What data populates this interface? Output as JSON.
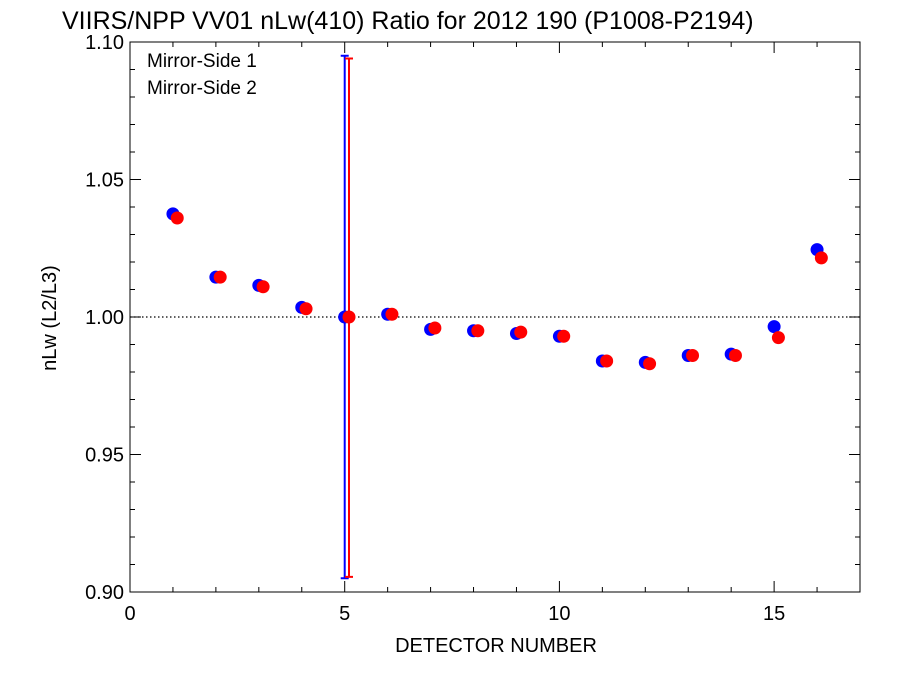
{
  "chart_data": {
    "type": "scatter",
    "title": "VIIRS/NPP VV01 nLw(410) Ratio for 2012 190 (P1008-P2194)",
    "xlabel": "DETECTOR NUMBER",
    "ylabel": "nLw (L2/L3)",
    "xlim": [
      0,
      17
    ],
    "ylim": [
      0.9,
      1.1
    ],
    "x_ticks": [
      0,
      5,
      10,
      15
    ],
    "x_tick_labels": [
      "0",
      "5",
      "10",
      "15"
    ],
    "y_ticks": [
      0.9,
      0.95,
      1.0,
      1.05,
      1.1
    ],
    "y_tick_labels": [
      "0.90",
      "0.95",
      "1.00",
      "1.05",
      "1.10"
    ],
    "reference_line": 1.0,
    "legend_position": "top-left",
    "series": [
      {
        "name": "Mirror-Side 1",
        "color": "#0000ff",
        "x": [
          1,
          2,
          3,
          4,
          5,
          6,
          7,
          8,
          9,
          10,
          11,
          12,
          13,
          14,
          15,
          16
        ],
        "values": [
          1.0375,
          1.0145,
          1.0115,
          1.0035,
          1.0,
          1.001,
          0.9955,
          0.995,
          0.994,
          0.993,
          0.984,
          0.9835,
          0.986,
          0.9865,
          0.9965,
          1.0245
        ],
        "error_bar": {
          "x": 5,
          "low": 0.905,
          "high": 1.095
        }
      },
      {
        "name": "Mirror-Side 2",
        "color": "#ff0000",
        "x": [
          1.1,
          2.1,
          3.1,
          4.1,
          5.1,
          6.1,
          7.1,
          8.1,
          9.1,
          10.1,
          11.1,
          12.1,
          13.1,
          14.1,
          15.1,
          16.1
        ],
        "values": [
          1.036,
          1.0145,
          1.011,
          1.003,
          1.0,
          1.001,
          0.996,
          0.995,
          0.9945,
          0.993,
          0.984,
          0.983,
          0.986,
          0.986,
          0.9925,
          1.0215
        ],
        "error_bar": {
          "x": 5.1,
          "low": 0.9055,
          "high": 1.094
        }
      }
    ]
  }
}
